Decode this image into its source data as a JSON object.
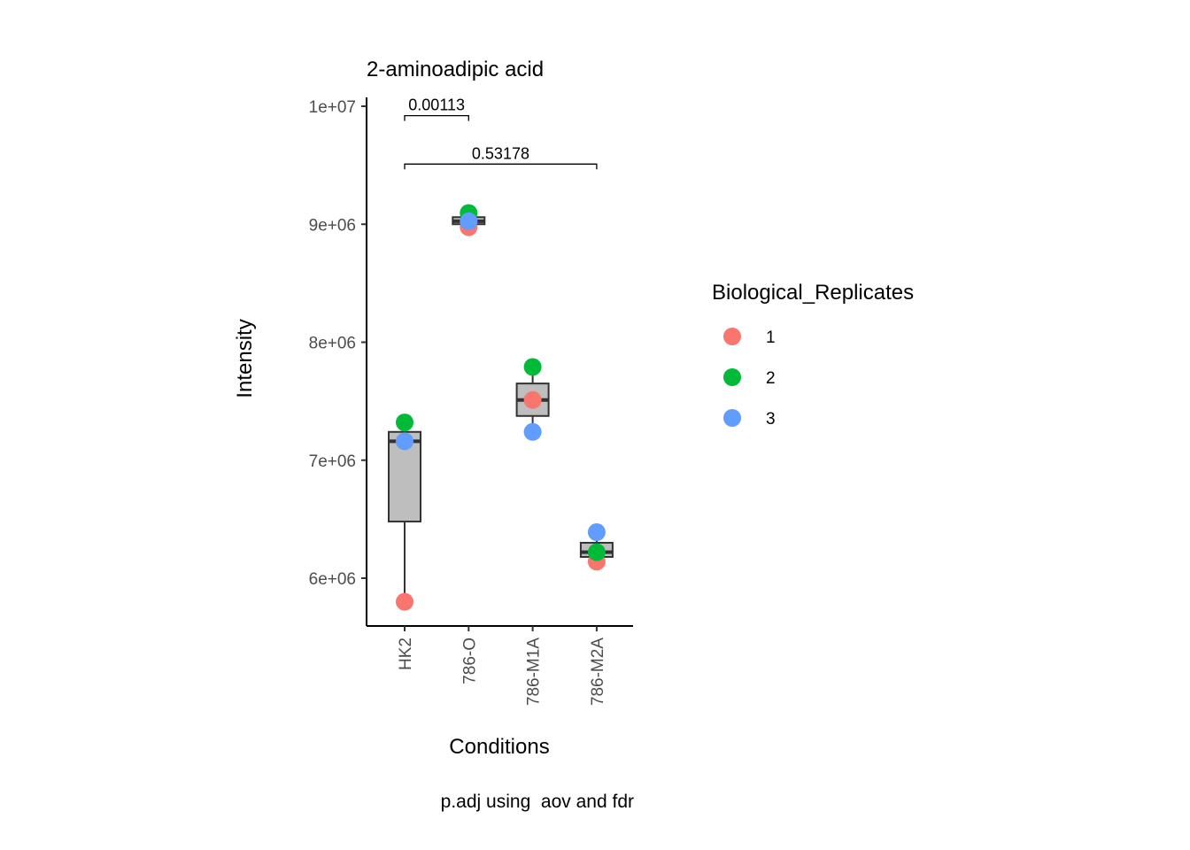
{
  "chart_data": {
    "type": "boxplot",
    "title": "2-aminoadipic acid",
    "xlabel": "Conditions",
    "ylabel": "Intensity",
    "caption": "p.adj using  aov and fdr",
    "categories": [
      "HK2",
      "786-O",
      "786-M1A",
      "786-M2A"
    ],
    "ylim": [
      5600000,
      10150000
    ],
    "y_ticks": [
      6000000,
      7000000,
      8000000,
      9000000,
      10000000
    ],
    "y_tick_labels": [
      "6e+06",
      "7e+06",
      "8e+06",
      "9e+06",
      "1e+07"
    ],
    "boxes": [
      {
        "category": "HK2",
        "min": 5800000,
        "q1": 6480000,
        "median": 7160000,
        "q3": 7240000,
        "max": 7320000
      },
      {
        "category": "786-O",
        "min": 8975000,
        "q1": 9000000,
        "median": 9025000,
        "q3": 9060000,
        "max": 9095000
      },
      {
        "category": "786-M1A",
        "min": 7240000,
        "q1": 7375000,
        "median": 7510000,
        "q3": 7650000,
        "max": 7790000
      },
      {
        "category": "786-M2A",
        "min": 6140000,
        "q1": 6180000,
        "median": 6220000,
        "q3": 6300000,
        "max": 6390000
      }
    ],
    "legend": {
      "title": "Biological_Replicates",
      "position": "right",
      "items": [
        {
          "label": "1",
          "color": "#F8766D"
        },
        {
          "label": "2",
          "color": "#00BA38"
        },
        {
          "label": "3",
          "color": "#619CFF"
        }
      ]
    },
    "series": [
      {
        "name": "1",
        "color": "#F8766D",
        "values": [
          5800000,
          8975000,
          7510000,
          6140000
        ]
      },
      {
        "name": "2",
        "color": "#00BA38",
        "values": [
          7320000,
          9095000,
          7790000,
          6220000
        ]
      },
      {
        "name": "3",
        "color": "#619CFF",
        "values": [
          7160000,
          9025000,
          7240000,
          6390000
        ]
      }
    ],
    "comparisons": [
      {
        "from": "HK2",
        "to": "786-O",
        "label": "0.00113",
        "y": 9920000
      },
      {
        "from": "HK2",
        "to": "786-M2A",
        "label": "0.53178",
        "y": 9510000
      }
    ],
    "box_fill": "#BEBEBE",
    "box_stroke": "#333333",
    "grid": false
  }
}
